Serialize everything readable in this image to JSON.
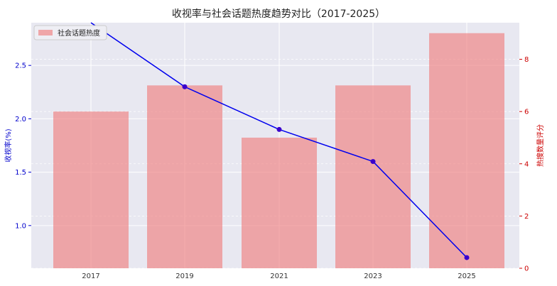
{
  "chart_data": {
    "type": "bar+line",
    "title": "收视率与社会话题热度趋势对比（2017-2025）",
    "categories": [
      "2017",
      "2019",
      "2021",
      "2023",
      "2025"
    ],
    "x": [
      2017,
      2019,
      2021,
      2023,
      2025
    ],
    "ylabel_left": "收视率(%)",
    "ylabel_right": "热搜数量评分",
    "ylim_left": [
      0.6,
      2.9
    ],
    "ylim_right": [
      0,
      9.4
    ],
    "yticks_left": [
      "1.0",
      "1.5",
      "2.0",
      "2.5"
    ],
    "yticks_right": [
      "0",
      "2",
      "4",
      "6",
      "8"
    ],
    "grid": true,
    "legend_position": "top-left",
    "series": [
      {
        "name": "社会话题热度",
        "type": "bar",
        "axis": "right",
        "color": "#f08080",
        "values": [
          6,
          7,
          5,
          7,
          9
        ]
      },
      {
        "name": "",
        "type": "line",
        "axis": "left",
        "color": "#0000ee",
        "values": [
          3.1,
          2.3,
          1.9,
          1.6,
          0.7
        ]
      }
    ]
  }
}
